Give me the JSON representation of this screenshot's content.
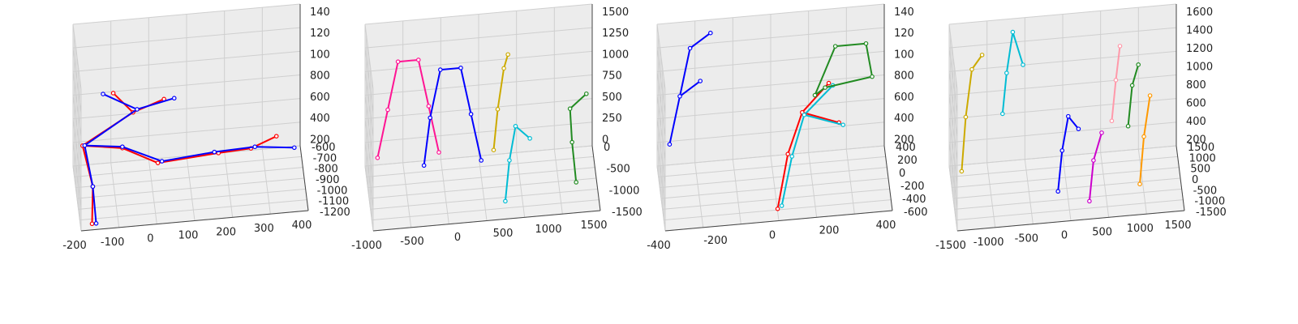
{
  "chart_data": [
    {
      "type": "3d-skeleton",
      "xticks": [
        "-200",
        "-100",
        "0",
        "100",
        "200",
        "300",
        "400"
      ],
      "yticks": [
        "-600",
        "-700",
        "-800",
        "-900",
        "-1000",
        "-1100",
        "-1200"
      ],
      "zticks": [
        "200",
        "400",
        "600",
        "800",
        "100",
        "120",
        "140"
      ],
      "grid": true,
      "skeletons": [
        {
          "color": "#ff0000",
          "joints": [
            [
              0,
              0,
              0
            ],
            [
              0,
              -0.1,
              0.32
            ],
            [
              -0.05,
              -0.1,
              0.63
            ],
            [
              0.15,
              0.05,
              0.52
            ],
            [
              0.32,
              -0.05,
              0.43
            ],
            [
              0.62,
              0.05,
              0.42
            ],
            [
              0.78,
              0.08,
              0.42
            ],
            [
              0.9,
              -0.05,
              0.55
            ],
            [
              0.2,
              0.0,
              0.8
            ],
            [
              0.35,
              -0.05,
              0.9
            ],
            [
              0.1,
              -0.1,
              1.0
            ]
          ],
          "edges": [
            [
              0,
              1
            ],
            [
              1,
              2
            ],
            [
              2,
              3
            ],
            [
              3,
              4
            ],
            [
              4,
              5
            ],
            [
              5,
              6
            ],
            [
              6,
              7
            ],
            [
              2,
              8
            ],
            [
              8,
              9
            ],
            [
              8,
              10
            ]
          ]
        },
        {
          "color": "#0000ff",
          "joints": [
            [
              0.02,
              0,
              0
            ],
            [
              0.0,
              -0.1,
              0.32
            ],
            [
              -0.04,
              -0.1,
              0.63
            ],
            [
              0.15,
              0.05,
              0.53
            ],
            [
              0.34,
              -0.05,
              0.44
            ],
            [
              0.6,
              0.05,
              0.43
            ],
            [
              0.8,
              0.1,
              0.42
            ],
            [
              1.0,
              0.3,
              0.3
            ],
            [
              0.22,
              0.0,
              0.82
            ],
            [
              0.4,
              -0.05,
              0.9
            ],
            [
              0.05,
              -0.1,
              1.0
            ]
          ],
          "edges": [
            [
              0,
              1
            ],
            [
              1,
              2
            ],
            [
              2,
              3
            ],
            [
              3,
              4
            ],
            [
              4,
              5
            ],
            [
              5,
              6
            ],
            [
              6,
              7
            ],
            [
              2,
              8
            ],
            [
              8,
              9
            ],
            [
              8,
              10
            ]
          ]
        }
      ]
    },
    {
      "type": "3d-skeleton",
      "xticks": [
        "-1000",
        "-500",
        "0",
        "500",
        "1000",
        "1500"
      ],
      "yticks": [
        "0",
        "-500",
        "-1000",
        "-1500"
      ],
      "zticks": [
        "0",
        "250",
        "500",
        "750",
        "1000",
        "1250",
        "1500"
      ],
      "grid": true,
      "skeletons": [
        {
          "color": "#ff1493",
          "joints": [
            [
              0,
              0.9,
              0.1
            ],
            [
              0.05,
              0.9,
              0.45
            ],
            [
              0.1,
              0.9,
              0.8
            ],
            [
              0.2,
              0.9,
              0.8
            ],
            [
              0.25,
              0.9,
              0.45
            ],
            [
              0.3,
              0.9,
              0.1
            ]
          ],
          "edges": [
            [
              0,
              1
            ],
            [
              1,
              2
            ],
            [
              2,
              3
            ],
            [
              3,
              4
            ],
            [
              4,
              5
            ]
          ]
        },
        {
          "color": "#0000ff",
          "joints": [
            [
              0.22,
              0.7,
              0.1
            ],
            [
              0.25,
              0.7,
              0.45
            ],
            [
              0.3,
              0.7,
              0.8
            ],
            [
              0.4,
              0.7,
              0.8
            ],
            [
              0.45,
              0.7,
              0.45
            ],
            [
              0.5,
              0.7,
              0.1
            ]
          ],
          "edges": [
            [
              0,
              1
            ],
            [
              1,
              2
            ],
            [
              2,
              3
            ],
            [
              3,
              4
            ],
            [
              4,
              5
            ]
          ]
        },
        {
          "color": "#ccaa00",
          "joints": [
            [
              0.55,
              0.4,
              0.3
            ],
            [
              0.57,
              0.4,
              0.6
            ],
            [
              0.6,
              0.4,
              0.9
            ],
            [
              0.62,
              0.4,
              1.0
            ]
          ],
          "edges": [
            [
              0,
              1
            ],
            [
              1,
              2
            ],
            [
              2,
              3
            ]
          ]
        },
        {
          "color": "#00bcd4",
          "joints": [
            [
              0.6,
              0.2,
              0.0
            ],
            [
              0.62,
              0.2,
              0.3
            ],
            [
              0.65,
              0.2,
              0.55
            ],
            [
              0.72,
              0.2,
              0.45
            ]
          ],
          "edges": [
            [
              0,
              1
            ],
            [
              1,
              2
            ],
            [
              2,
              3
            ]
          ]
        },
        {
          "color": "#228b22",
          "joints": [
            [
              0.95,
              0.3,
              0.05
            ],
            [
              0.93,
              0.3,
              0.35
            ],
            [
              0.92,
              0.3,
              0.6
            ],
            [
              1.0,
              0.3,
              0.7
            ]
          ],
          "edges": [
            [
              0,
              1
            ],
            [
              1,
              2
            ],
            [
              2,
              3
            ]
          ]
        }
      ]
    },
    {
      "type": "3d-skeleton",
      "xticks": [
        "-400",
        "-200",
        "0",
        "200",
        "400"
      ],
      "yticks": [
        "400",
        "200",
        "0",
        "-200",
        "-400",
        "-600"
      ],
      "zticks": [
        "200",
        "400",
        "600",
        "800",
        "100",
        "120",
        "140"
      ],
      "grid": true,
      "skeletons": [
        {
          "color": "#0000ff",
          "joints": [
            [
              0.0,
              0.9,
              0.2
            ],
            [
              0.05,
              0.9,
              0.55
            ],
            [
              0.1,
              0.9,
              0.9
            ],
            [
              0.2,
              0.9,
              1.0
            ],
            [
              0.15,
              0.9,
              0.65
            ]
          ],
          "edges": [
            [
              0,
              1
            ],
            [
              1,
              2
            ],
            [
              2,
              3
            ],
            [
              1,
              4
            ]
          ]
        },
        {
          "color": "#ff0000",
          "joints": [
            [
              0.5,
              0.1,
              0.0
            ],
            [
              0.55,
              0.1,
              0.4
            ],
            [
              0.62,
              0.1,
              0.7
            ],
            [
              0.75,
              0.1,
              0.9
            ],
            [
              0.8,
              0.1,
              0.6
            ]
          ],
          "edges": [
            [
              0,
              1
            ],
            [
              1,
              2
            ],
            [
              2,
              3
            ],
            [
              2,
              4
            ]
          ]
        },
        {
          "color": "#00bcd4",
          "joints": [
            [
              0.52,
              0.1,
              0.02
            ],
            [
              0.57,
              0.1,
              0.38
            ],
            [
              0.63,
              0.1,
              0.68
            ],
            [
              0.77,
              0.1,
              0.88
            ],
            [
              0.82,
              0.1,
              0.58
            ]
          ],
          "edges": [
            [
              0,
              1
            ],
            [
              1,
              2
            ],
            [
              2,
              3
            ],
            [
              2,
              4
            ]
          ]
        },
        {
          "color": "#228b22",
          "joints": [
            [
              0.7,
              0.6,
              0.6
            ],
            [
              0.8,
              0.6,
              0.95
            ],
            [
              0.95,
              0.6,
              0.95
            ],
            [
              0.98,
              0.6,
              0.7
            ],
            [
              0.75,
              0.6,
              0.65
            ]
          ],
          "edges": [
            [
              0,
              1
            ],
            [
              1,
              2
            ],
            [
              2,
              3
            ],
            [
              3,
              4
            ],
            [
              4,
              0
            ]
          ]
        }
      ]
    },
    {
      "type": "3d-skeleton",
      "xticks": [
        "-1500",
        "-1000",
        "-500",
        "0",
        "500",
        "1000",
        "1500"
      ],
      "yticks": [
        "1500",
        "1000",
        "500",
        "0",
        "-500",
        "-1000",
        "-1500"
      ],
      "zticks": [
        "200",
        "400",
        "600",
        "800",
        "1000",
        "1200",
        "1400",
        "1600"
      ],
      "grid": true,
      "skeletons": [
        {
          "color": "#ccaa00",
          "joints": [
            [
              0.0,
              0.9,
              0.0
            ],
            [
              0.02,
              0.9,
              0.4
            ],
            [
              0.05,
              0.9,
              0.75
            ],
            [
              0.1,
              0.9,
              0.85
            ]
          ],
          "edges": [
            [
              0,
              1
            ],
            [
              1,
              2
            ],
            [
              2,
              3
            ]
          ]
        },
        {
          "color": "#00bcd4",
          "joints": [
            [
              0.2,
              0.9,
              0.4
            ],
            [
              0.22,
              0.9,
              0.7
            ],
            [
              0.25,
              0.9,
              1.0
            ],
            [
              0.3,
              0.9,
              0.75
            ]
          ],
          "edges": [
            [
              0,
              1
            ],
            [
              1,
              2
            ],
            [
              2,
              3
            ]
          ]
        },
        {
          "color": "#0000ff",
          "joints": [
            [
              0.45,
              0.3,
              0.05
            ],
            [
              0.47,
              0.3,
              0.35
            ],
            [
              0.5,
              0.3,
              0.6
            ],
            [
              0.55,
              0.3,
              0.5
            ]
          ],
          "edges": [
            [
              0,
              1
            ],
            [
              1,
              2
            ],
            [
              2,
              3
            ]
          ]
        },
        {
          "color": "#cc00cc",
          "joints": [
            [
              0.6,
              0.2,
              0.0
            ],
            [
              0.62,
              0.2,
              0.3
            ],
            [
              0.66,
              0.2,
              0.5
            ]
          ],
          "edges": [
            [
              0,
              1
            ],
            [
              1,
              2
            ]
          ]
        },
        {
          "color": "#ff99aa",
          "joints": [
            [
              0.72,
              0.5,
              0.45
            ],
            [
              0.74,
              0.5,
              0.75
            ],
            [
              0.76,
              0.5,
              1.0
            ]
          ],
          "edges": [
            [
              0,
              1
            ],
            [
              1,
              2
            ]
          ]
        },
        {
          "color": "#228b22",
          "joints": [
            [
              0.8,
              0.5,
              0.4
            ],
            [
              0.82,
              0.5,
              0.7
            ],
            [
              0.85,
              0.5,
              0.85
            ]
          ],
          "edges": [
            [
              0,
              1
            ],
            [
              1,
              2
            ]
          ]
        },
        {
          "color": "#ff9900",
          "joints": [
            [
              0.85,
              0.3,
              0.05
            ],
            [
              0.87,
              0.3,
              0.4
            ],
            [
              0.9,
              0.3,
              0.7
            ]
          ],
          "edges": [
            [
              0,
              1
            ],
            [
              1,
              2
            ]
          ]
        }
      ]
    }
  ]
}
